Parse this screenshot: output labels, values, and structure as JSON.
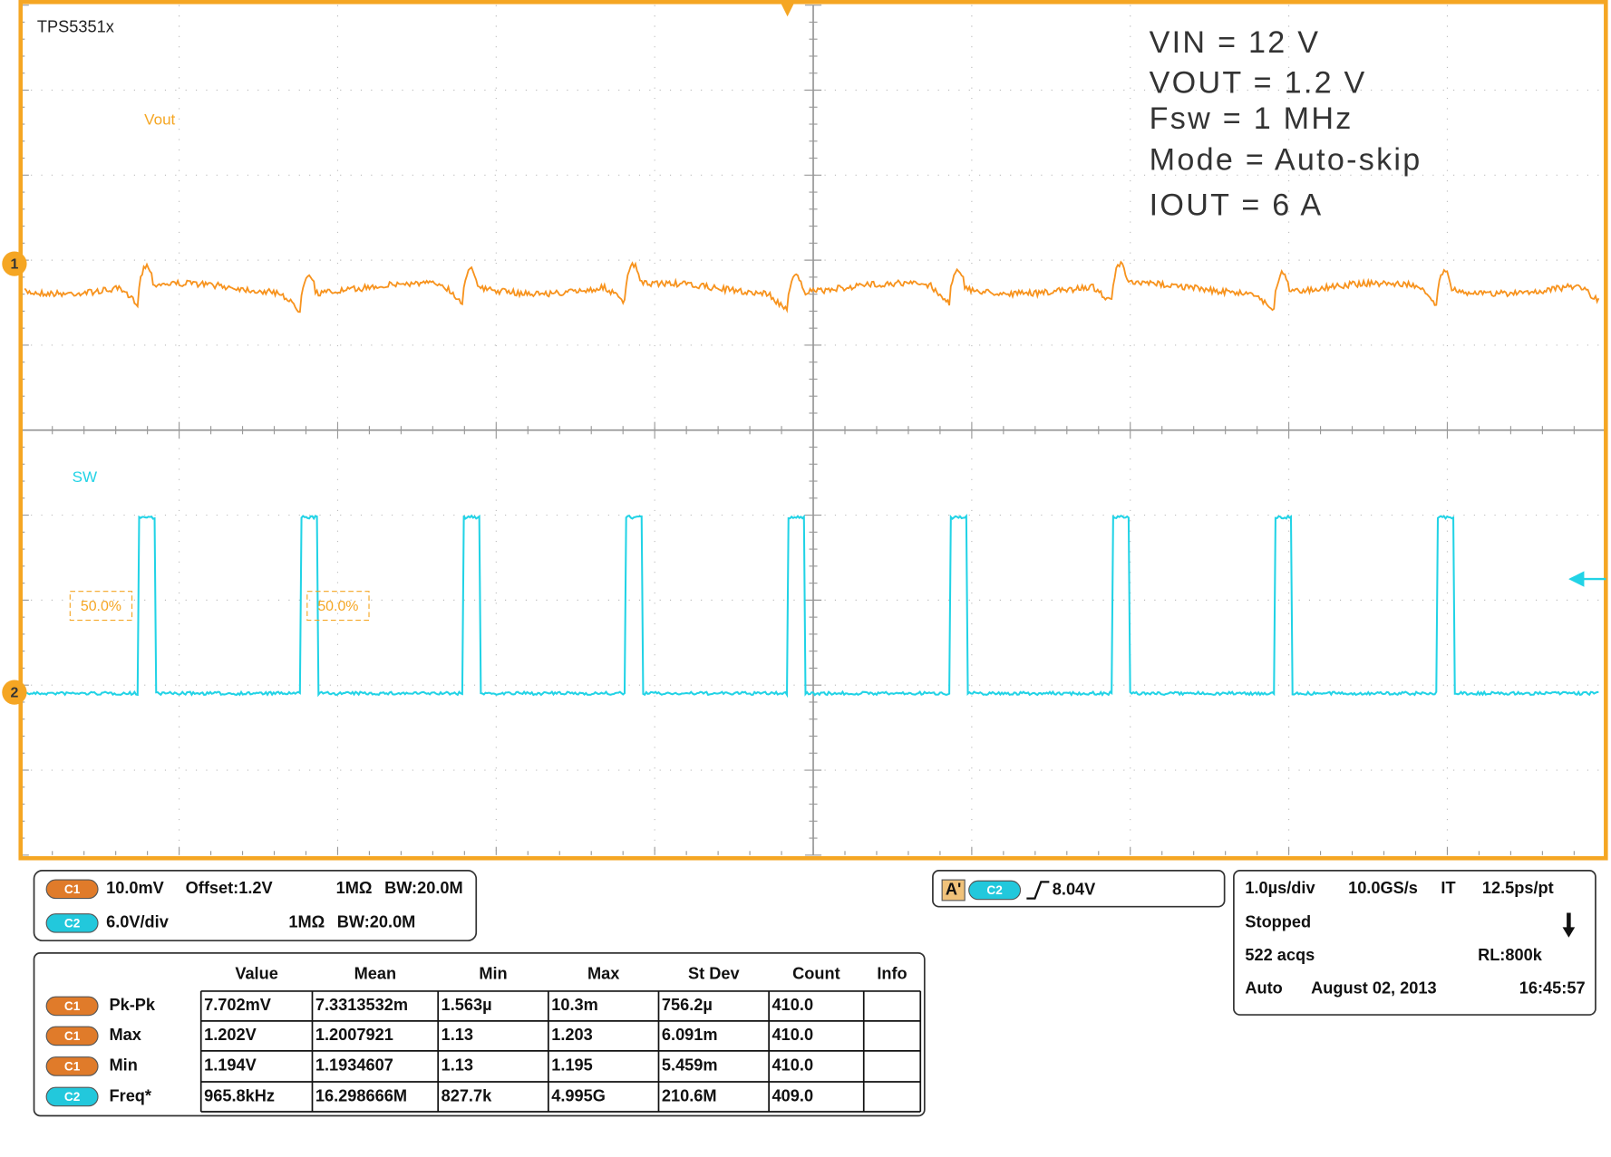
{
  "scope": {
    "label": "TPS5351x",
    "ch1_label": "Vout",
    "ch2_label": "SW",
    "cursor_labels": [
      "50.0%",
      "50.0%"
    ],
    "markers": [
      "1",
      "2"
    ]
  },
  "annotations": [
    "VIN = 12 V",
    "VOUT = 1.2 V",
    "Fsw = 1 MHz",
    "Mode = Auto-skip",
    "IOUT = 6 A"
  ],
  "channels": [
    {
      "badge": "C1",
      "scale": "10.0mV",
      "offset": "Offset:1.2V",
      "impedance": "1MΩ",
      "bandwidth": "BW:20.0M"
    },
    {
      "badge": "C2",
      "scale": "6.0V/div",
      "impedance": "1MΩ",
      "bandwidth": "BW:20.0M"
    }
  ],
  "trigger": {
    "source": "A'",
    "channel": "C2",
    "level": "8.04V"
  },
  "timebase": {
    "scale": "1.0µs/div",
    "rate": "10.0GS/s",
    "mode": "IT",
    "resolution": "12.5ps/pt",
    "state": "Stopped",
    "acqs": "522 acqs",
    "record": "RL:800k",
    "trigger_mode": "Auto",
    "date": "August 02, 2013",
    "time": "16:45:57"
  },
  "measurements": {
    "headers": [
      "Value",
      "Mean",
      "Min",
      "Max",
      "St Dev",
      "Count",
      "Info"
    ],
    "rows": [
      {
        "channel": "C1",
        "name": "Pk-Pk",
        "cells": [
          "7.702mV",
          "7.3313532m",
          "1.563µ",
          "10.3m",
          "756.2µ",
          "410.0"
        ]
      },
      {
        "channel": "C1",
        "name": "Max",
        "cells": [
          "1.202V",
          "1.2007921",
          "1.13",
          "1.203",
          "6.091m",
          "410.0"
        ]
      },
      {
        "channel": "C1",
        "name": "Min",
        "cells": [
          "1.194V",
          "1.1934607",
          "1.13",
          "1.195",
          "5.459m",
          "410.0"
        ]
      },
      {
        "channel": "C2",
        "name": "Freq*",
        "cells": [
          "965.8kHz",
          "16.298666M",
          "827.7k",
          "4.995G",
          "210.6M",
          "409.0"
        ]
      }
    ]
  }
}
